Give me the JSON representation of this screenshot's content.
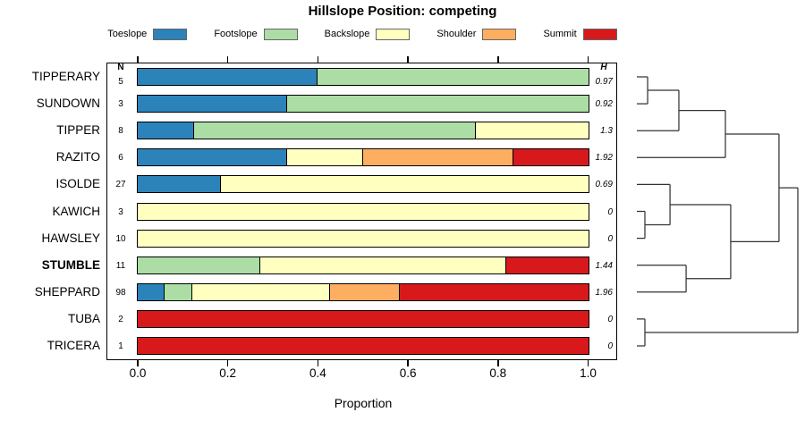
{
  "title": "Hillslope Position: competing",
  "columns": {
    "n_header": "N",
    "h_header": "H"
  },
  "axis": {
    "tick_labels": [
      "0.0",
      "0.2",
      "0.4",
      "0.6",
      "0.8",
      "1.0"
    ],
    "tick_values": [
      0,
      0.2,
      0.4,
      0.6,
      0.8,
      1
    ],
    "label": "Proportion"
  },
  "legend": {
    "items": [
      {
        "label": "Toeslope",
        "color": "#2B83BA"
      },
      {
        "label": "Footslope",
        "color": "#ABDDA4"
      },
      {
        "label": "Backslope",
        "color": "#FFFFBF"
      },
      {
        "label": "Shoulder",
        "color": "#FDAE61"
      },
      {
        "label": "Summit",
        "color": "#D7191C"
      }
    ]
  },
  "chart_data": {
    "type": "bar",
    "subtype": "horizontal-stacked-proportions-with-dendrogram",
    "title": "Hillslope Position: competing",
    "xlabel": "Proportion",
    "xlim": [
      0,
      1
    ],
    "grid": false,
    "legend_position": "top",
    "categories": [
      "Toeslope",
      "Footslope",
      "Backslope",
      "Shoulder",
      "Summit"
    ],
    "colors": [
      "#2B83BA",
      "#ABDDA4",
      "#FFFFBF",
      "#FDAE61",
      "#D7191C"
    ],
    "rows": [
      {
        "label": "TIPPERARY",
        "n": 5,
        "H": "0.97",
        "bold": false,
        "proportions": [
          0.4,
          0.6,
          0,
          0,
          0
        ]
      },
      {
        "label": "SUNDOWN",
        "n": 3,
        "H": "0.92",
        "bold": false,
        "proportions": [
          0.333,
          0.667,
          0,
          0,
          0
        ]
      },
      {
        "label": "TIPPER",
        "n": 8,
        "H": "1.3",
        "bold": false,
        "proportions": [
          0.125,
          0.625,
          0.25,
          0,
          0
        ]
      },
      {
        "label": "RAZITO",
        "n": 6,
        "H": "1.92",
        "bold": false,
        "proportions": [
          0.333,
          0,
          0.167,
          0.333,
          0.167
        ]
      },
      {
        "label": "ISOLDE",
        "n": 27,
        "H": "0.69",
        "bold": false,
        "proportions": [
          0.185,
          0,
          0.815,
          0,
          0
        ]
      },
      {
        "label": "KAWICH",
        "n": 3,
        "H": "0",
        "bold": false,
        "proportions": [
          0,
          0,
          1,
          0,
          0
        ]
      },
      {
        "label": "HAWSLEY",
        "n": 10,
        "H": "0",
        "bold": false,
        "proportions": [
          0,
          0,
          1,
          0,
          0
        ]
      },
      {
        "label": "STUMBLE",
        "n": 11,
        "H": "1.44",
        "bold": true,
        "proportions": [
          0,
          0.273,
          0.545,
          0,
          0.182
        ]
      },
      {
        "label": "SHEPPARD",
        "n": 98,
        "H": "1.96",
        "bold": false,
        "proportions": [
          0.061,
          0.061,
          0.306,
          0.153,
          0.419
        ]
      },
      {
        "label": "TUBA",
        "n": 2,
        "H": "0",
        "bold": false,
        "proportions": [
          0,
          0,
          0,
          0,
          1
        ]
      },
      {
        "label": "TRICERA",
        "n": 1,
        "H": "0",
        "bold": false,
        "proportions": [
          0,
          0,
          0,
          0,
          1
        ]
      }
    ],
    "dendrogram": {
      "orientation": "right",
      "tree": {
        "h": 1.0,
        "children": [
          {
            "h": 0.883,
            "children": [
              {
                "h": 0.55,
                "children": [
                  {
                    "h": 0.261,
                    "children": [
                      {
                        "h": 0.067,
                        "children": [
                          {
                            "leaf": 0
                          },
                          {
                            "leaf": 1
                          }
                        ]
                      },
                      {
                        "leaf": 2
                      }
                    ]
                  },
                  {
                    "leaf": 3
                  }
                ]
              },
              {
                "h": 0.583,
                "children": [
                  {
                    "h": 0.206,
                    "children": [
                      {
                        "leaf": 4
                      },
                      {
                        "h": 0.05,
                        "children": [
                          {
                            "leaf": 5
                          },
                          {
                            "leaf": 6
                          }
                        ]
                      }
                    ]
                  },
                  {
                    "h": 0.306,
                    "children": [
                      {
                        "leaf": 7
                      },
                      {
                        "leaf": 8
                      }
                    ]
                  }
                ]
              }
            ]
          },
          {
            "h": 0.05,
            "children": [
              {
                "leaf": 9
              },
              {
                "leaf": 10
              }
            ]
          }
        ]
      }
    }
  }
}
